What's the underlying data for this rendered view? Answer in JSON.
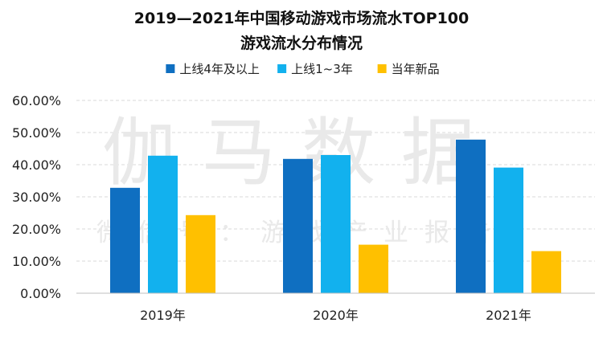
{
  "chart_data": {
    "type": "bar",
    "title_line1": "2019—2021年中国移动游戏市场流水TOP100",
    "title_line2": "游戏流水分布情况",
    "categories": [
      "2019年",
      "2020年",
      "2021年"
    ],
    "series": [
      {
        "name": "上线4年及以上",
        "color": "#0f6fc1",
        "values": [
          32.8,
          41.8,
          47.8
        ]
      },
      {
        "name": "上线1~3年",
        "color": "#12b1ee",
        "values": [
          42.8,
          43.0,
          39.1
        ]
      },
      {
        "name": "当年新品",
        "color": "#ffc000",
        "values": [
          24.3,
          15.1,
          13.1
        ]
      }
    ],
    "ylim": [
      0,
      60
    ],
    "yticks": [
      0,
      10,
      20,
      30,
      40,
      50,
      60
    ],
    "ytick_labels": [
      "0.00%",
      "10.00%",
      "20.00%",
      "30.00%",
      "40.00%",
      "50.00%",
      "60.00%"
    ],
    "grid": true,
    "legend_position": "top-center"
  },
  "watermark": {
    "line1": "伽马数据",
    "line2": "微信号：游戏产业报告"
  }
}
